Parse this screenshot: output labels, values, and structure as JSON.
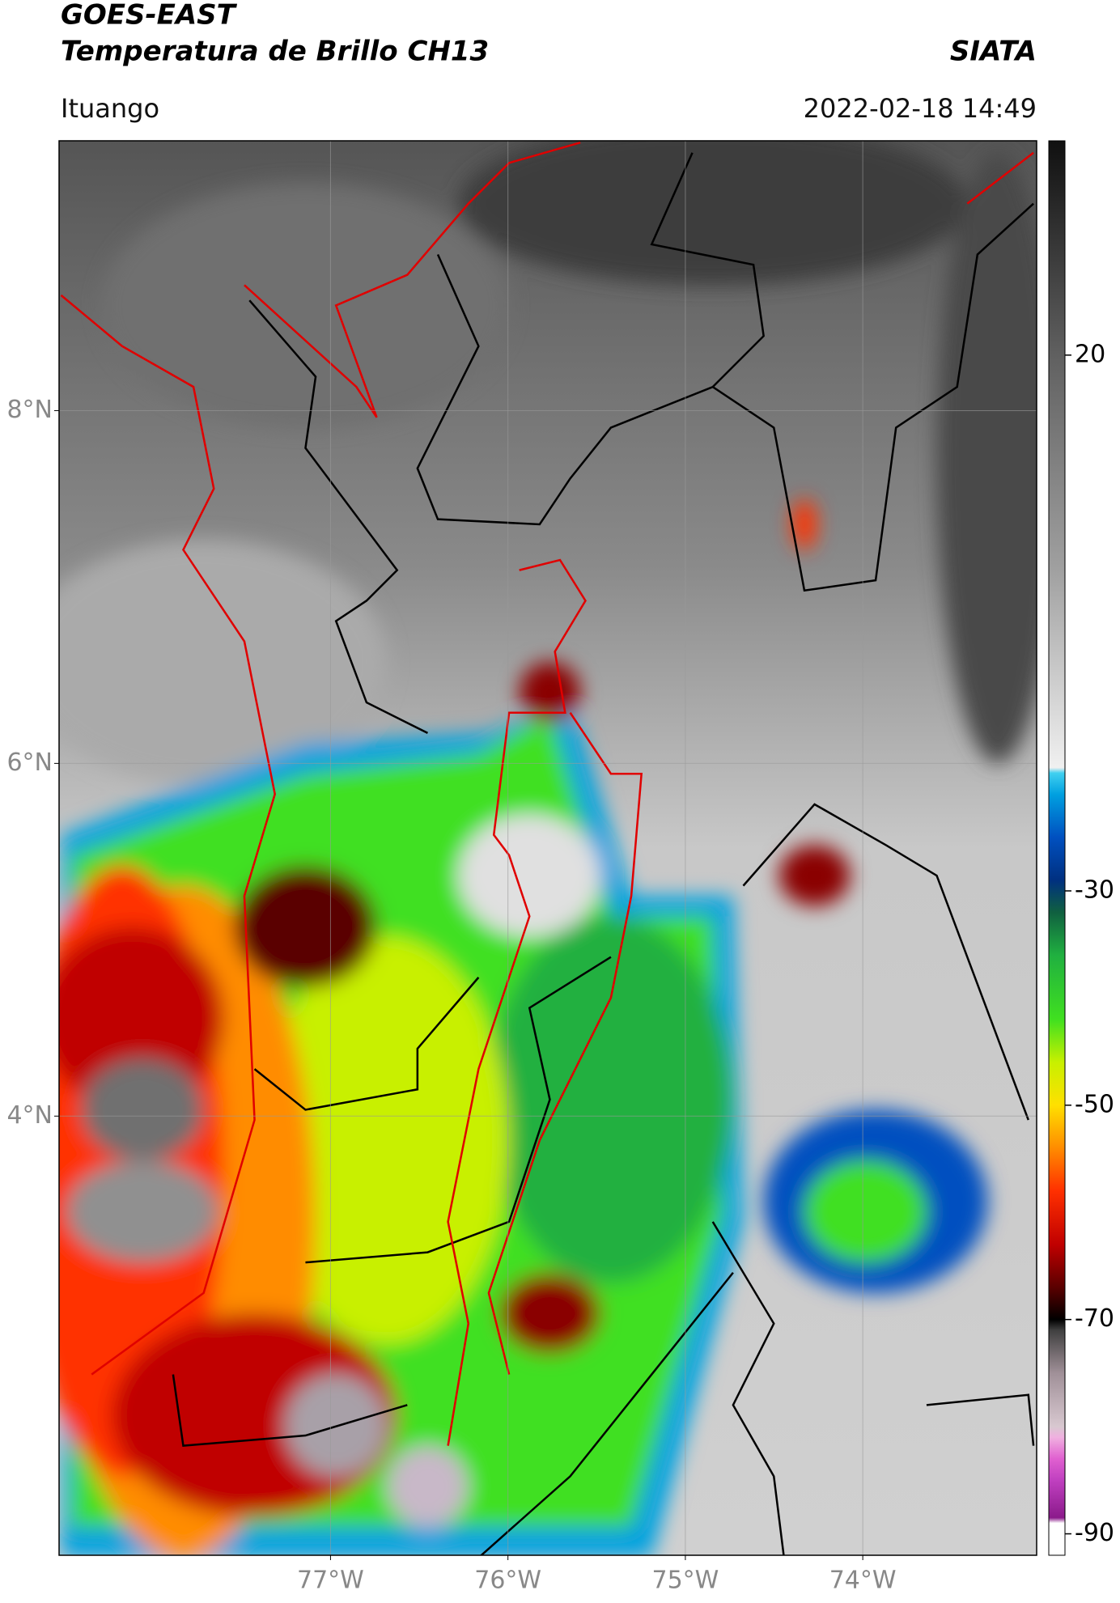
{
  "header": {
    "title": "GOES-EAST",
    "subtitle": "Temperatura de Brillo CH13",
    "source": "SIATA",
    "location": "Ituango",
    "datetime": "2022-02-18 14:49"
  },
  "map": {
    "xlim": [
      -78.53,
      -73.02
    ],
    "ylim": [
      1.51,
      9.53
    ],
    "xticks": [
      {
        "value": -77,
        "label": "77°W"
      },
      {
        "value": -76,
        "label": "76°W"
      },
      {
        "value": -75,
        "label": "75°W"
      },
      {
        "value": -74,
        "label": "74°W"
      }
    ],
    "yticks": [
      {
        "value": 8,
        "label": "8°N"
      },
      {
        "value": 6,
        "label": "6°N"
      },
      {
        "value": 4,
        "label": "4°N"
      }
    ],
    "grid": true
  },
  "colorbar": {
    "lim": [
      -92,
      40
    ],
    "ticks": [
      20,
      -30,
      -50,
      -70,
      -90
    ],
    "colormap": [
      {
        "value": -92,
        "color": "#ffffff"
      },
      {
        "value": -89,
        "color": "#ffffff"
      },
      {
        "value": -88.5,
        "color": "#8b1a8b"
      },
      {
        "value": -85,
        "color": "#c040c0"
      },
      {
        "value": -83,
        "color": "#e060d0"
      },
      {
        "value": -81,
        "color": "#f0b0e0"
      },
      {
        "value": -80,
        "color": "#d8c8d0"
      },
      {
        "value": -75,
        "color": "#a09098"
      },
      {
        "value": -71,
        "color": "#404040"
      },
      {
        "value": -70,
        "color": "#000000"
      },
      {
        "value": -67,
        "color": "#5a0000"
      },
      {
        "value": -63,
        "color": "#c00000"
      },
      {
        "value": -58,
        "color": "#ff3000"
      },
      {
        "value": -54,
        "color": "#ff8c00"
      },
      {
        "value": -50,
        "color": "#ffe000"
      },
      {
        "value": -46,
        "color": "#c8f000"
      },
      {
        "value": -42,
        "color": "#40e020"
      },
      {
        "value": -36,
        "color": "#20b040"
      },
      {
        "value": -32,
        "color": "#106040"
      },
      {
        "value": -29,
        "color": "#003080"
      },
      {
        "value": -25,
        "color": "#0050c0"
      },
      {
        "value": -21,
        "color": "#00a0e0"
      },
      {
        "value": -19,
        "color": "#40d0f0"
      },
      {
        "value": -18.5,
        "color": "#f0f0f0"
      },
      {
        "value": 0,
        "color": "#a0a0a0"
      },
      {
        "value": 20,
        "color": "#606060"
      },
      {
        "value": 40,
        "color": "#101010"
      }
    ]
  }
}
